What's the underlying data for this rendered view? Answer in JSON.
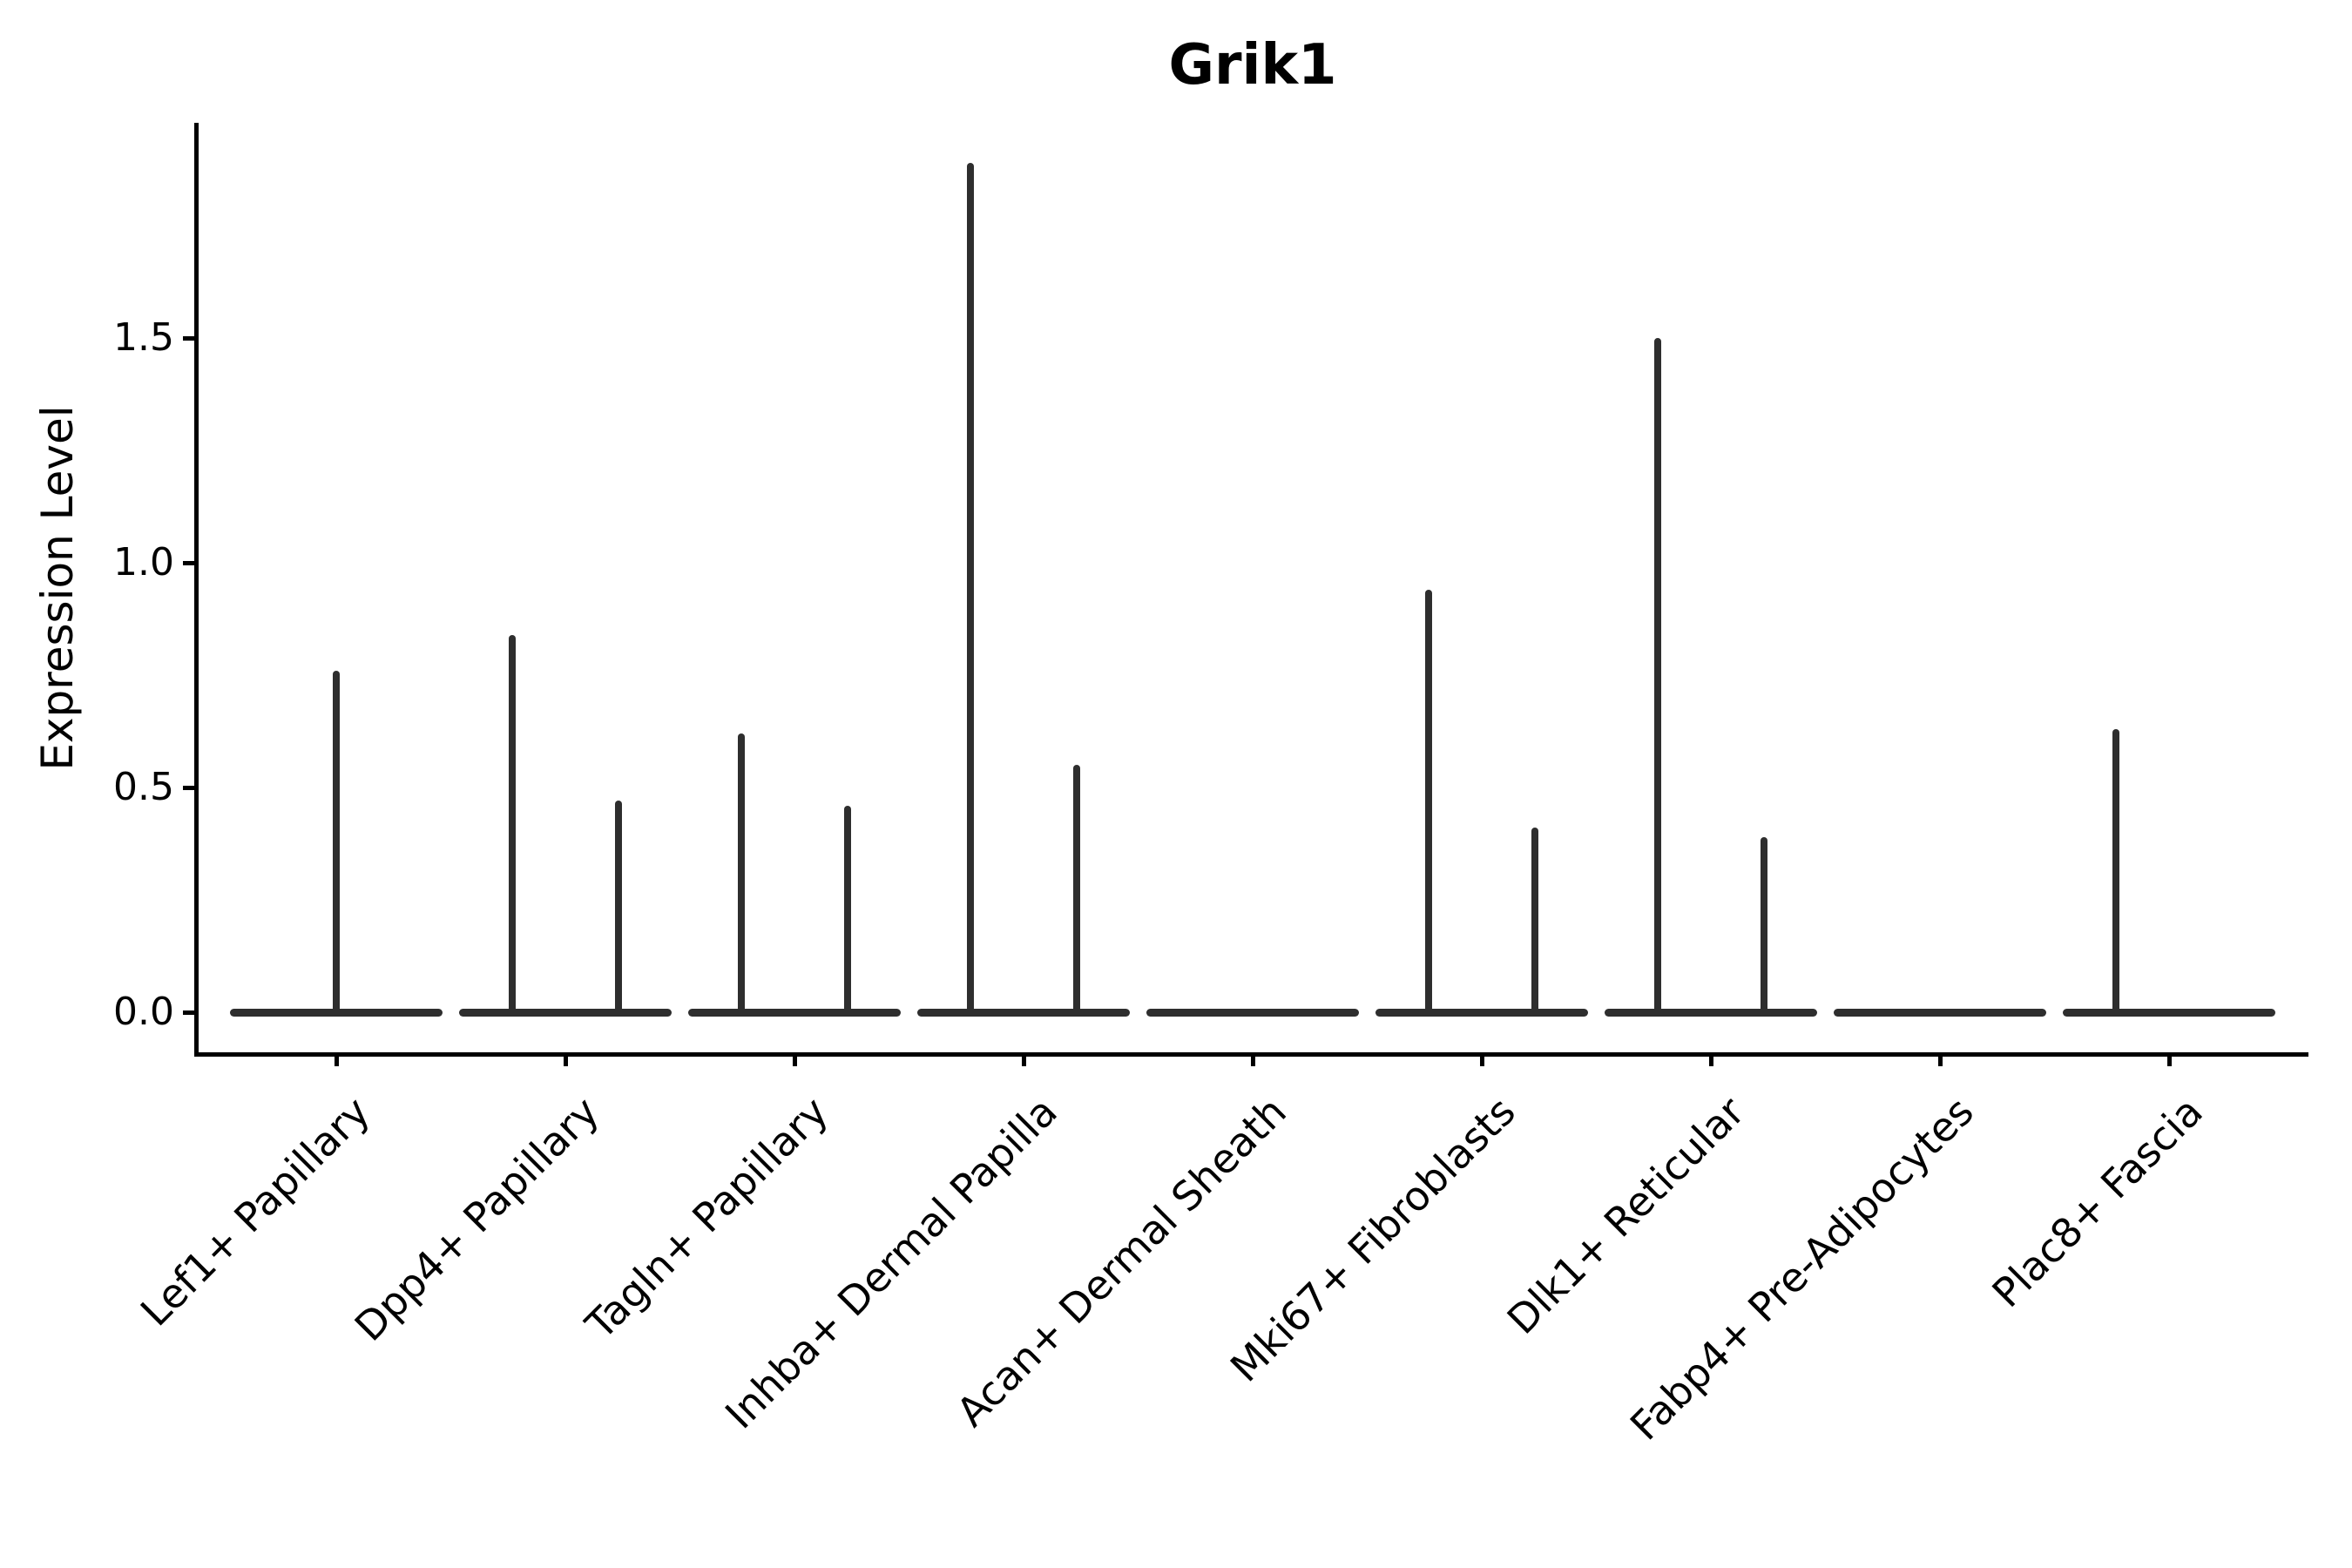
{
  "chart": {
    "title": "Grik1",
    "ylabel": "Expression Level",
    "colors": {
      "violin": "#2e2e2e",
      "axis": "#000000",
      "background": "#ffffff"
    }
  },
  "chart_data": {
    "type": "violin",
    "title": "Grik1",
    "xlabel": "",
    "ylabel": "Expression Level",
    "ylim": [
      -0.09,
      1.98
    ],
    "yticks": [
      {
        "label": "0.0",
        "value": 0.0
      },
      {
        "label": "0.5",
        "value": 0.5
      },
      {
        "label": "1.0",
        "value": 1.0
      },
      {
        "label": "1.5",
        "value": 1.5
      }
    ],
    "grid": false,
    "legend": null,
    "categories": [
      "Lef1+ Papillary",
      "Dpp4+ Papillary",
      "Tagln+ Papillary",
      "Inhba+ Dermal Papilla",
      "Acan+ Dermal Sheath",
      "Mki67+ Fibroblasts",
      "Dlk1+ Reticular",
      "Fabp4+ Pre-Adipocytes",
      "Plac8+ Fascia"
    ],
    "violins": [
      {
        "category": "Lef1+ Papillary",
        "baseline_value": 0,
        "spikes": [
          {
            "position": "center",
            "max": 0.76
          }
        ]
      },
      {
        "category": "Dpp4+ Papillary",
        "baseline_value": 0,
        "spikes": [
          {
            "position": "left",
            "max": 0.84
          },
          {
            "position": "right",
            "max": 0.47
          }
        ]
      },
      {
        "category": "Tagln+ Papillary",
        "baseline_value": 0,
        "spikes": [
          {
            "position": "left",
            "max": 0.62
          },
          {
            "position": "right",
            "max": 0.46
          }
        ]
      },
      {
        "category": "Inhba+ Dermal Papilla",
        "baseline_value": 0,
        "spikes": [
          {
            "position": "left",
            "max": 1.89
          },
          {
            "position": "right",
            "max": 0.55
          }
        ]
      },
      {
        "category": "Acan+ Dermal Sheath",
        "baseline_value": 0,
        "spikes": []
      },
      {
        "category": "Mki67+ Fibroblasts",
        "baseline_value": 0,
        "spikes": [
          {
            "position": "left",
            "max": 0.94
          },
          {
            "position": "right",
            "max": 0.41
          }
        ]
      },
      {
        "category": "Dlk1+ Reticular",
        "baseline_value": 0,
        "spikes": [
          {
            "position": "left",
            "max": 1.5
          },
          {
            "position": "right",
            "max": 0.39
          }
        ]
      },
      {
        "category": "Fabp4+ Pre-Adipocytes",
        "baseline_value": 0,
        "spikes": []
      },
      {
        "category": "Plac8+ Fascia",
        "baseline_value": 0,
        "spikes": [
          {
            "position": "left",
            "max": 0.63
          }
        ]
      }
    ]
  }
}
